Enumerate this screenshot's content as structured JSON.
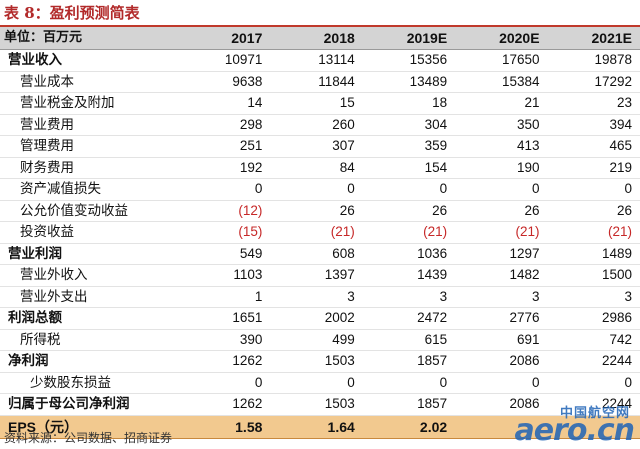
{
  "title": "表 8：盈利预测简表",
  "header": {
    "label": "单位：百万元",
    "years": [
      "2017",
      "2018",
      "2019E",
      "2020E",
      "2021E"
    ]
  },
  "rows": [
    {
      "label": "营业收入",
      "style": "bold",
      "values": [
        "10971",
        "13114",
        "15356",
        "17650",
        "19878"
      ]
    },
    {
      "label": "营业成本",
      "style": "sub",
      "values": [
        "9638",
        "11844",
        "13489",
        "15384",
        "17292"
      ]
    },
    {
      "label": "营业税金及附加",
      "style": "sub",
      "values": [
        "14",
        "15",
        "18",
        "21",
        "23"
      ]
    },
    {
      "label": "营业费用",
      "style": "sub",
      "values": [
        "298",
        "260",
        "304",
        "350",
        "394"
      ]
    },
    {
      "label": "管理费用",
      "style": "sub",
      "values": [
        "251",
        "307",
        "359",
        "413",
        "465"
      ]
    },
    {
      "label": "财务费用",
      "style": "sub",
      "values": [
        "192",
        "84",
        "154",
        "190",
        "219"
      ]
    },
    {
      "label": "资产减值损失",
      "style": "sub",
      "values": [
        "0",
        "0",
        "0",
        "0",
        "0"
      ]
    },
    {
      "label": "公允价值变动收益",
      "style": "sub",
      "values": [
        "(12)",
        "26",
        "26",
        "26",
        "26"
      ]
    },
    {
      "label": "投资收益",
      "style": "sub",
      "values": [
        "(15)",
        "(21)",
        "(21)",
        "(21)",
        "(21)"
      ]
    },
    {
      "label": "营业利润",
      "style": "bold",
      "values": [
        "549",
        "608",
        "1036",
        "1297",
        "1489"
      ]
    },
    {
      "label": "营业外收入",
      "style": "sub",
      "values": [
        "1103",
        "1397",
        "1439",
        "1482",
        "1500"
      ]
    },
    {
      "label": "营业外支出",
      "style": "sub",
      "values": [
        "1",
        "3",
        "3",
        "3",
        "3"
      ]
    },
    {
      "label": "利润总额",
      "style": "bold",
      "values": [
        "1651",
        "2002",
        "2472",
        "2776",
        "2986"
      ]
    },
    {
      "label": "所得税",
      "style": "sub",
      "values": [
        "390",
        "499",
        "615",
        "691",
        "742"
      ]
    },
    {
      "label": "净利润",
      "style": "bold-plain",
      "values": [
        "1262",
        "1503",
        "1857",
        "2086",
        "2244"
      ]
    },
    {
      "label": "少数股东损益",
      "style": "ind",
      "values": [
        "0",
        "0",
        "0",
        "0",
        "0"
      ]
    },
    {
      "label": "归属于母公司净利润",
      "style": "bold",
      "values": [
        "1262",
        "1503",
        "1857",
        "2086",
        "2244"
      ]
    },
    {
      "label": "EPS（元）",
      "style": "eps",
      "values": [
        "1.58",
        "1.64",
        "2.02",
        "",
        ""
      ]
    }
  ],
  "source": "资料来源：公司数据、招商证券",
  "watermark": {
    "line1": "中国航空网",
    "line2": "aero.cn"
  },
  "colors": {
    "title": "#b22a2a",
    "header_bg": "#d4d4d4",
    "eps_bg": "#f2c98f",
    "negative": "#c62828",
    "watermark": "#1f63b6"
  }
}
